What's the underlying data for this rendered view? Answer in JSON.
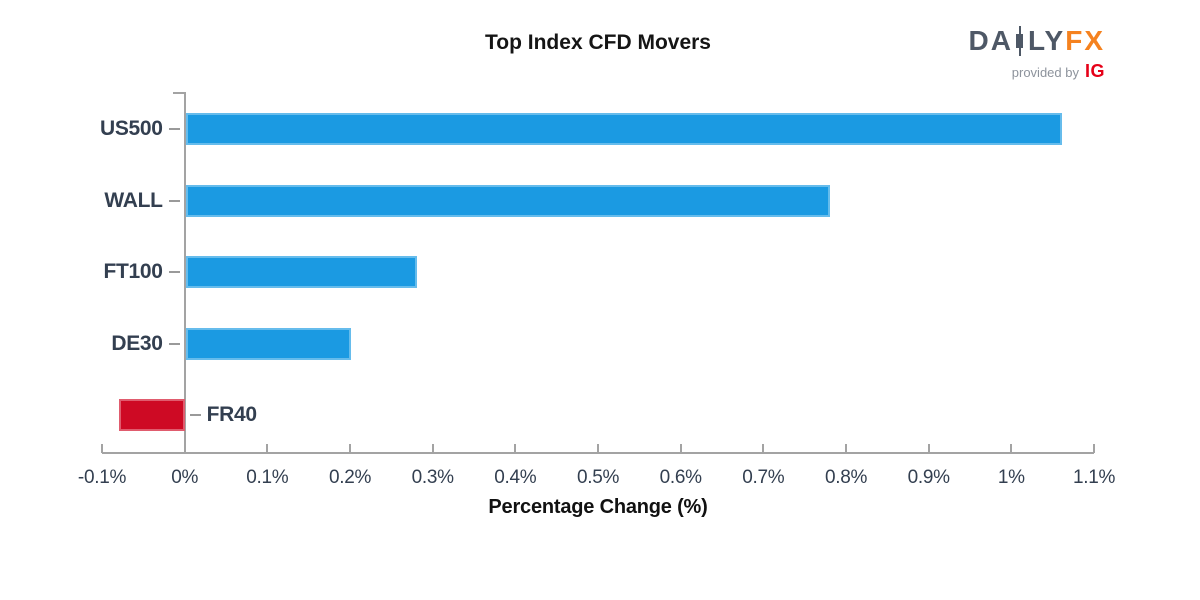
{
  "title": "Top Index CFD Movers",
  "logo": {
    "brand_prefix": "DA",
    "brand_suffix": "LY",
    "brand_fx": "FX",
    "provided_by": "provided by",
    "provider": "IG"
  },
  "chart_data": {
    "type": "bar",
    "orientation": "horizontal",
    "title": "Top Index CFD Movers",
    "categories": [
      "US500",
      "WALL",
      "FT100",
      "DE30",
      "FR40"
    ],
    "values": [
      1.06,
      0.78,
      0.28,
      0.2,
      -0.08
    ],
    "xlabel": "Percentage Change (%)",
    "xlim": [
      -0.1,
      1.1
    ],
    "x_ticks": [
      -0.1,
      0,
      0.1,
      0.2,
      0.3,
      0.4,
      0.5,
      0.6,
      0.7,
      0.8,
      0.9,
      1.0,
      1.1
    ],
    "x_tick_labels": [
      "-0.1%",
      "0%",
      "0.1%",
      "0.2%",
      "0.3%",
      "0.4%",
      "0.5%",
      "0.6%",
      "0.7%",
      "0.8%",
      "0.9%",
      "1%",
      "1.1%"
    ],
    "grid": false,
    "legend": false
  },
  "colors": {
    "bar_positive": "#1b9ae2",
    "bar_positive_edge": "#66bcec",
    "bar_negative": "#ce0a24",
    "bar_negative_edge": "#e05c6e",
    "axis": "#a3a3a3",
    "tick_label": "#333f50",
    "category_label": "#333f50",
    "title": "#151515",
    "logo_slate": "#4e5866",
    "logo_orange": "#f5821f",
    "provided_gray": "#8d939c",
    "ig_red": "#e60018"
  }
}
